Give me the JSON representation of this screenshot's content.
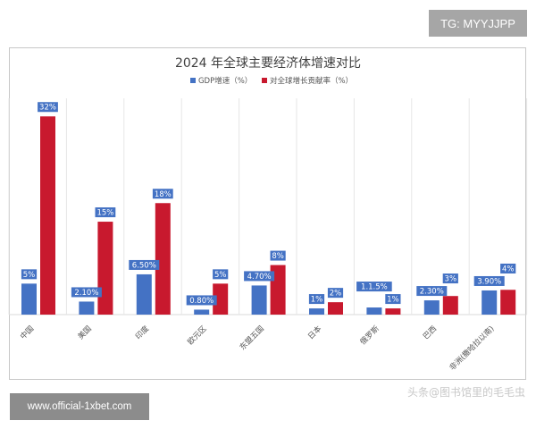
{
  "watermark_tag": "TG: MYYJJPP",
  "site_label": "www.official-1xbet.com",
  "source_watermark": "头条@图书馆里的毛毛虫",
  "chart_data": {
    "type": "bar",
    "title": "2024 年全球主要经济体增速对比",
    "xlabel": "",
    "ylabel": "",
    "categories": [
      "中国",
      "美国",
      "印度",
      "欧元区",
      "东盟五国",
      "日本",
      "俄罗斯",
      "巴西",
      "非洲(撒哈拉以南)"
    ],
    "series": [
      {
        "name": "GDP增速（%）",
        "color": "#4472c4",
        "values": [
          5,
          2.1,
          6.5,
          0.8,
          4.7,
          1,
          1.15,
          2.3,
          3.9
        ],
        "labels": [
          "5%",
          "2.10%",
          "6.50%",
          "0.80%",
          "4.70%",
          "1%",
          "1.1.5%",
          "2.30%",
          "3.90%"
        ]
      },
      {
        "name": "对全球增长贡献率（%）",
        "color": "#c8192e",
        "values": [
          32,
          15,
          18,
          5,
          8,
          2,
          1,
          3,
          4
        ],
        "labels": [
          "32%",
          "15%",
          "18%",
          "5%",
          "8%",
          "2%",
          "1%",
          "3%",
          "4%"
        ]
      }
    ],
    "ylim": [
      0,
      35
    ],
    "grid": "vertical category separators",
    "legend_position": "top"
  }
}
